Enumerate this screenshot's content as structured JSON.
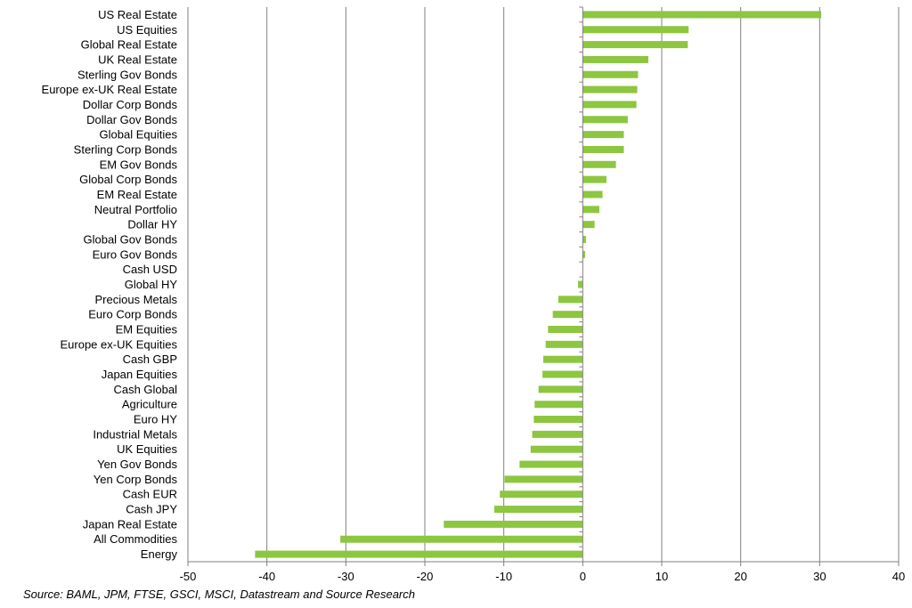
{
  "chart_data": {
    "type": "bar",
    "orientation": "horizontal",
    "title": "",
    "xlabel": "",
    "ylabel": "",
    "xlim": [
      -50,
      40
    ],
    "xticks": [
      -50,
      -40,
      -30,
      -20,
      -10,
      0,
      10,
      20,
      30,
      40
    ],
    "grid": "vertical",
    "legend": "none",
    "bar_color": "#8dc63f",
    "grid_color": "#808080",
    "categories": [
      "US Real Estate",
      "US Equities",
      "Global Real Estate",
      "UK Real Estate",
      "Sterling Gov Bonds",
      "Europe ex-UK Real Estate",
      "Dollar Corp Bonds",
      "Dollar Gov Bonds",
      "Global Equities",
      "Sterling Corp Bonds",
      "EM Gov Bonds",
      "Global Corp Bonds",
      "EM Real Estate",
      "Neutral Portfolio",
      "Dollar HY",
      "Global Gov Bonds",
      "Euro Gov Bonds",
      "Cash USD",
      "Global HY",
      "Precious Metals",
      "Euro Corp Bonds",
      "EM Equities",
      "Europe ex-UK Equities",
      "Cash GBP",
      "Japan Equities",
      "Cash Global",
      "Agriculture",
      "Euro HY",
      "Industrial Metals",
      "UK Equities",
      "Yen Gov Bonds",
      "Yen Corp Bonds",
      "Cash EUR",
      "Cash JPY",
      "Japan Real Estate",
      "All Commodities",
      "Energy"
    ],
    "values": [
      30.2,
      13.4,
      13.3,
      8.3,
      7.0,
      6.9,
      6.8,
      5.7,
      5.2,
      5.2,
      4.2,
      3.0,
      2.5,
      2.1,
      1.5,
      0.4,
      0.3,
      0.0,
      -0.6,
      -3.1,
      -3.8,
      -4.4,
      -4.7,
      -5.0,
      -5.1,
      -5.6,
      -6.1,
      -6.2,
      -6.4,
      -6.6,
      -8.0,
      -9.9,
      -10.5,
      -11.2,
      -17.6,
      -30.7,
      -41.5
    ]
  },
  "source_note": "Source: BAML, JPM, FTSE, GSCI, MSCI, Datastream and Source Research"
}
